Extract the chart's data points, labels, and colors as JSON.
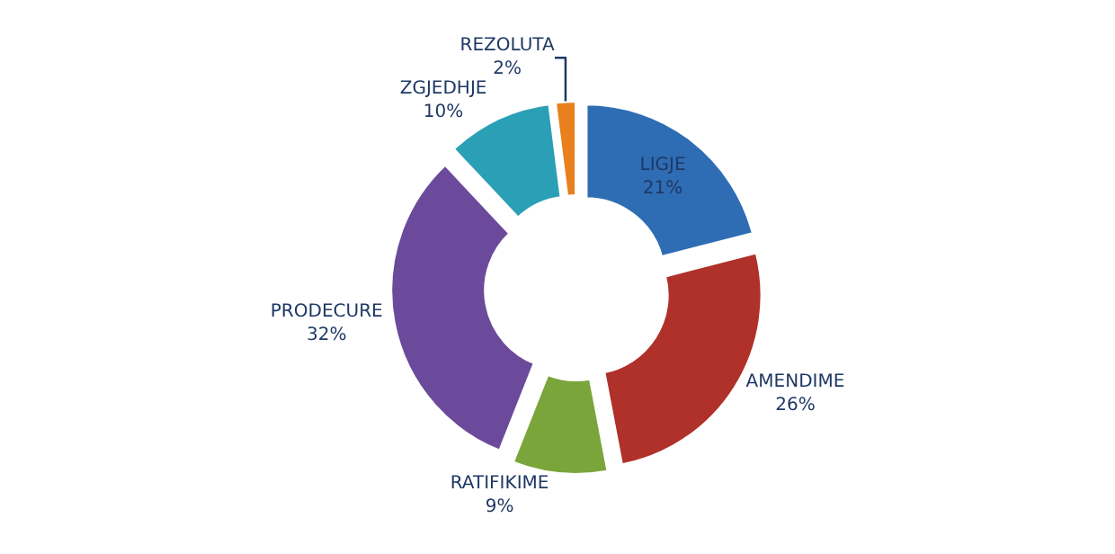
{
  "chart_data": {
    "type": "donut",
    "categories": [
      "LIGJE",
      "AMENDIME",
      "RATIFIKIME",
      "PRODECURE",
      "ZGJEDHJE",
      "REZOLUTA"
    ],
    "values": [
      21,
      26,
      9,
      32,
      10,
      2
    ],
    "value_labels": [
      "21%",
      "26%",
      "9%",
      "32%",
      "10%",
      "2%"
    ],
    "colors": [
      "#2e6db4",
      "#b0302a",
      "#7aa53a",
      "#6b4a9b",
      "#2b9fb5",
      "#e8801e"
    ],
    "legend": false
  }
}
